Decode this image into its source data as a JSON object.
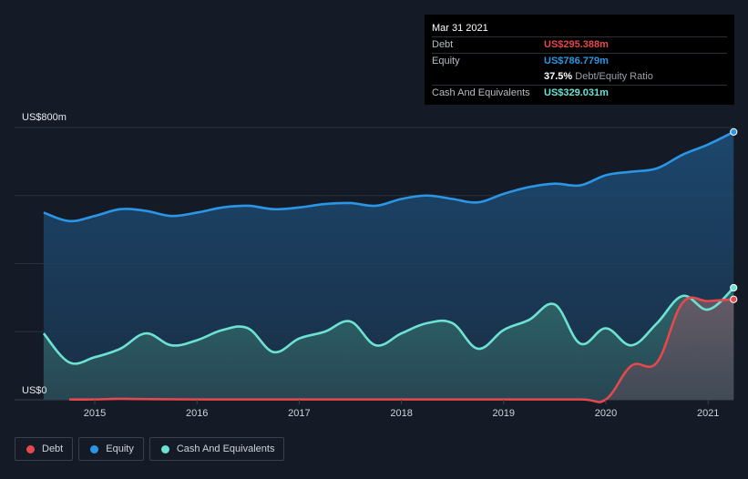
{
  "tooltip": {
    "date": "Mar 31 2021",
    "rows": [
      {
        "label": "Debt",
        "value": "US$295.388m",
        "color": "#e5484d"
      },
      {
        "label": "Equity",
        "value": "US$786.779m",
        "color": "#2b96e6"
      }
    ],
    "ratio_value": "37.5%",
    "ratio_label": "Debt/Equity Ratio",
    "cash": {
      "label": "Cash And Equivalents",
      "value": "US$329.031m",
      "color": "#6de2d3"
    }
  },
  "legend": [
    {
      "label": "Debt",
      "color": "#e5484d"
    },
    {
      "label": "Equity",
      "color": "#2b96e6"
    },
    {
      "label": "Cash And Equivalents",
      "color": "#6de2d3"
    }
  ],
  "chart_data": {
    "type": "area",
    "y_top_label": "US$800m",
    "y_bottom_label": "US$0",
    "ylim": [
      0,
      800
    ],
    "xlim": [
      2014.5,
      2021.25
    ],
    "x_ticks": [
      "2015",
      "2016",
      "2017",
      "2018",
      "2019",
      "2020",
      "2021"
    ],
    "grid": true,
    "series": [
      {
        "name": "Equity",
        "color": "#2b96e6",
        "x": [
          2014.5,
          2014.75,
          2015.0,
          2015.25,
          2015.5,
          2015.75,
          2016.0,
          2016.25,
          2016.5,
          2016.75,
          2017.0,
          2017.25,
          2017.5,
          2017.75,
          2018.0,
          2018.25,
          2018.5,
          2018.75,
          2019.0,
          2019.25,
          2019.5,
          2019.75,
          2020.0,
          2020.25,
          2020.5,
          2020.75,
          2021.0,
          2021.25
        ],
        "y": [
          550,
          525,
          540,
          560,
          555,
          540,
          550,
          565,
          570,
          560,
          565,
          575,
          578,
          570,
          590,
          600,
          590,
          580,
          605,
          625,
          635,
          630,
          660,
          670,
          680,
          720,
          750,
          787
        ]
      },
      {
        "name": "Cash And Equivalents",
        "color": "#6de2d3",
        "x": [
          2014.5,
          2014.75,
          2015.0,
          2015.25,
          2015.5,
          2015.75,
          2016.0,
          2016.25,
          2016.5,
          2016.75,
          2017.0,
          2017.25,
          2017.5,
          2017.75,
          2018.0,
          2018.25,
          2018.5,
          2018.75,
          2019.0,
          2019.25,
          2019.5,
          2019.75,
          2020.0,
          2020.25,
          2020.5,
          2020.75,
          2021.0,
          2021.25
        ],
        "y": [
          195,
          110,
          125,
          150,
          195,
          160,
          175,
          205,
          210,
          140,
          180,
          200,
          230,
          160,
          195,
          225,
          225,
          150,
          205,
          235,
          280,
          165,
          210,
          160,
          225,
          305,
          265,
          329
        ]
      },
      {
        "name": "Debt",
        "color": "#e5484d",
        "x": [
          2014.75,
          2015.0,
          2015.25,
          2015.5,
          2016.0,
          2017.0,
          2018.0,
          2019.0,
          2019.75,
          2020.0,
          2020.25,
          2020.5,
          2020.75,
          2021.0,
          2021.25
        ],
        "y": [
          1,
          1,
          3,
          2,
          1,
          1,
          1,
          1,
          1,
          1,
          100,
          110,
          285,
          290,
          295
        ]
      }
    ]
  }
}
